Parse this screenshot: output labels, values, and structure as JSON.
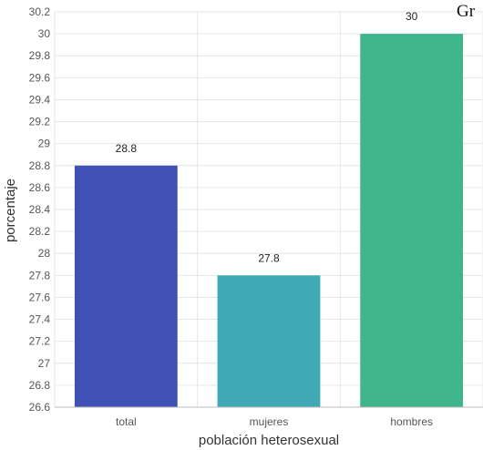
{
  "chart_data": {
    "type": "bar",
    "title": "",
    "corner_text": "Gr",
    "xlabel": "población heterosexual",
    "ylabel": "porcentaje",
    "categories": [
      "total",
      "mujeres",
      "hombres"
    ],
    "values": [
      28.8,
      27.8,
      30
    ],
    "data_labels": [
      "28.8",
      "27.8",
      "30"
    ],
    "colors": [
      "#3f51b5",
      "#3fa9b5",
      "#3fb58c"
    ],
    "ylim": [
      26.6,
      30.2
    ],
    "yticks": [
      "30.2",
      "30",
      "29.8",
      "29.6",
      "29.4",
      "29.2",
      "29",
      "28.8",
      "28.6",
      "28.4",
      "28.2",
      "28",
      "27.8",
      "27.6",
      "27.4",
      "27.2",
      "27",
      "26.8",
      "26.6"
    ],
    "grid": true,
    "legend": "none"
  }
}
